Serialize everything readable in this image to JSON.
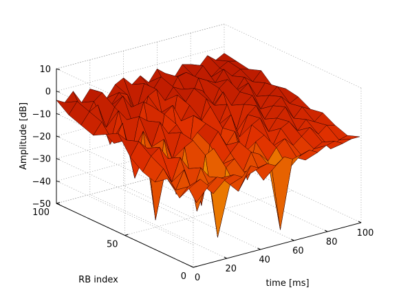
{
  "chart_data": {
    "type": "surface",
    "title": "",
    "xlabel": "time [ms]",
    "ylabel": "RB index",
    "zlabel": "Amplitude [dB]",
    "xlim": [
      0,
      100
    ],
    "ylim": [
      0,
      100
    ],
    "zlim": [
      -50,
      10
    ],
    "x_ticks": [
      0,
      20,
      40,
      60,
      80,
      100
    ],
    "y_ticks": [
      0,
      50,
      100
    ],
    "z_ticks": [
      -50,
      -40,
      -30,
      -20,
      -10,
      0,
      10
    ],
    "x_tick_labels": [
      "0",
      "20",
      "40",
      "60",
      "80",
      "100"
    ],
    "y_tick_labels": [
      "0",
      "50",
      "100"
    ],
    "z_tick_labels": [
      "−50",
      "−40",
      "−30",
      "−20",
      "−10",
      "0",
      "10"
    ],
    "grid": true,
    "colormap": [
      "#00c8c8",
      "#f0f020",
      "#f0a000",
      "#e03000",
      "#900000"
    ],
    "surface": {
      "rb_index": [
        100,
        91,
        82,
        73,
        64,
        55,
        46,
        37,
        28,
        19,
        10,
        1
      ],
      "time_ms": [
        0,
        5,
        10,
        15,
        20,
        25,
        30,
        35,
        40,
        45,
        50,
        55,
        60,
        65,
        70,
        75,
        80,
        85,
        90,
        95,
        100
      ],
      "amplitude_db": [
        [
          -4,
          -6,
          -2,
          -8,
          -3,
          -5,
          -9,
          -4,
          -2,
          -6,
          -3,
          -7,
          -2,
          -5,
          -8,
          -3,
          -4,
          -6,
          -2,
          -5,
          -3
        ],
        [
          -8,
          -3,
          -12,
          -5,
          -2,
          -9,
          -4,
          -6,
          -15,
          -3,
          -7,
          -2,
          -10,
          -4,
          -3,
          -6,
          -2,
          -8,
          -5,
          -3,
          -4
        ],
        [
          -10,
          -5,
          -3,
          -14,
          -6,
          -2,
          -8,
          -20,
          -5,
          -3,
          -9,
          -4,
          -6,
          -12,
          -3,
          -5,
          -7,
          -2,
          -6,
          -4,
          -5
        ],
        [
          -12,
          -7,
          -18,
          -4,
          -9,
          -15,
          -3,
          -6,
          -10,
          -25,
          -4,
          -8,
          -3,
          -5,
          -14,
          -6,
          -3,
          -9,
          -4,
          -7,
          -3
        ],
        [
          -9,
          -14,
          -6,
          -22,
          -5,
          -8,
          -30,
          -7,
          -4,
          -12,
          -6,
          -18,
          -5,
          -9,
          -4,
          -11,
          -6,
          -3,
          -10,
          -5,
          -8
        ],
        [
          -6,
          -10,
          -28,
          -8,
          -16,
          -6,
          -12,
          -9,
          -35,
          -7,
          -10,
          -5,
          -14,
          -6,
          -20,
          -8,
          -5,
          -12,
          -7,
          -4,
          -6
        ],
        [
          -14,
          -8,
          -12,
          -45,
          -10,
          -20,
          -9,
          -15,
          -11,
          -8,
          -25,
          -12,
          -7,
          -18,
          -9,
          -6,
          -13,
          -8,
          -5,
          -9,
          -7
        ],
        [
          -18,
          -12,
          -9,
          -15,
          -32,
          -12,
          -10,
          -40,
          -14,
          -9,
          -16,
          -11,
          -22,
          -10,
          -8,
          -15,
          -10,
          -6,
          -12,
          -8,
          -10
        ],
        [
          -20,
          -15,
          -22,
          -12,
          -18,
          -38,
          -14,
          -12,
          -20,
          -16,
          -12,
          -30,
          -14,
          -12,
          -18,
          -11,
          -9,
          -14,
          -10,
          -12,
          -9
        ],
        [
          -16,
          -22,
          -14,
          -25,
          -15,
          -20,
          -48,
          -18,
          -15,
          -22,
          -14,
          -16,
          -20,
          -15,
          -12,
          -16,
          -13,
          -10,
          -14,
          -11,
          -12
        ],
        [
          -22,
          -18,
          -26,
          -20,
          -24,
          -18,
          -22,
          -26,
          -20,
          -18,
          -24,
          -20,
          -48,
          -22,
          -18,
          -20,
          -16,
          -14,
          -18,
          -15,
          -14
        ],
        [
          -14,
          -12,
          -16,
          -13,
          -15,
          -14,
          -16,
          -12,
          -14,
          -13,
          -15,
          -12,
          -14,
          -13,
          -12,
          -14,
          -12,
          -11,
          -13,
          -12,
          -12
        ]
      ]
    }
  }
}
